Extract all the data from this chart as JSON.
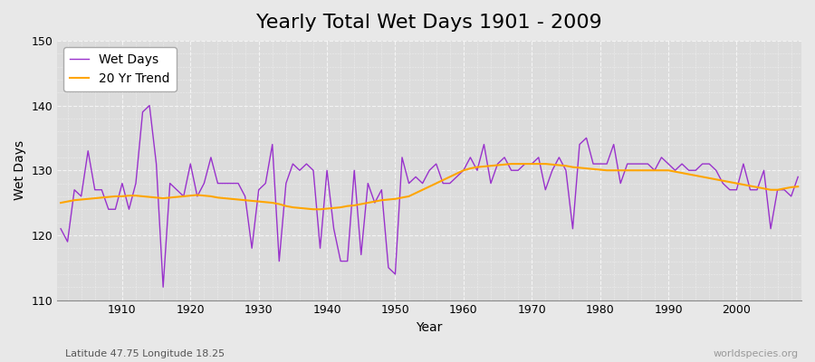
{
  "title": "Yearly Total Wet Days 1901 - 2009",
  "xlabel": "Year",
  "ylabel": "Wet Days",
  "subtitle": "Latitude 47.75 Longitude 18.25",
  "watermark": "worldspecies.org",
  "years": [
    1901,
    1902,
    1903,
    1904,
    1905,
    1906,
    1907,
    1908,
    1909,
    1910,
    1911,
    1912,
    1913,
    1914,
    1915,
    1916,
    1917,
    1918,
    1919,
    1920,
    1921,
    1922,
    1923,
    1924,
    1925,
    1926,
    1927,
    1928,
    1929,
    1930,
    1931,
    1932,
    1933,
    1934,
    1935,
    1936,
    1937,
    1938,
    1939,
    1940,
    1941,
    1942,
    1943,
    1944,
    1945,
    1946,
    1947,
    1948,
    1949,
    1950,
    1951,
    1952,
    1953,
    1954,
    1955,
    1956,
    1957,
    1958,
    1959,
    1960,
    1961,
    1962,
    1963,
    1964,
    1965,
    1966,
    1967,
    1968,
    1969,
    1970,
    1971,
    1972,
    1973,
    1974,
    1975,
    1976,
    1977,
    1978,
    1979,
    1980,
    1981,
    1982,
    1983,
    1984,
    1985,
    1986,
    1987,
    1988,
    1989,
    1990,
    1991,
    1992,
    1993,
    1994,
    1995,
    1996,
    1997,
    1998,
    1999,
    2000,
    2001,
    2002,
    2003,
    2004,
    2005,
    2006,
    2007,
    2008,
    2009
  ],
  "wet_days": [
    121,
    119,
    127,
    126,
    133,
    127,
    127,
    124,
    124,
    128,
    124,
    128,
    139,
    140,
    131,
    112,
    128,
    127,
    126,
    131,
    126,
    128,
    132,
    128,
    128,
    128,
    128,
    126,
    118,
    127,
    128,
    134,
    116,
    128,
    131,
    130,
    131,
    130,
    118,
    130,
    121,
    116,
    116,
    130,
    117,
    128,
    125,
    127,
    115,
    114,
    132,
    128,
    129,
    128,
    130,
    131,
    128,
    128,
    129,
    130,
    132,
    130,
    134,
    128,
    131,
    132,
    130,
    130,
    131,
    131,
    132,
    127,
    130,
    132,
    130,
    121,
    134,
    135,
    131,
    131,
    131,
    134,
    128,
    131,
    131,
    131,
    131,
    130,
    132,
    131,
    130,
    131,
    130,
    130,
    131,
    131,
    130,
    128,
    127,
    127,
    131,
    127,
    127,
    130,
    121,
    127,
    127,
    126,
    129
  ],
  "trend": [
    125.0,
    125.2,
    125.4,
    125.5,
    125.6,
    125.7,
    125.8,
    125.9,
    126.0,
    126.0,
    126.1,
    126.1,
    126.0,
    125.9,
    125.8,
    125.7,
    125.8,
    125.9,
    126.0,
    126.1,
    126.2,
    126.1,
    126.0,
    125.8,
    125.7,
    125.6,
    125.5,
    125.4,
    125.3,
    125.2,
    125.1,
    125.0,
    124.8,
    124.5,
    124.3,
    124.2,
    124.1,
    124.0,
    124.0,
    124.1,
    124.2,
    124.3,
    124.5,
    124.6,
    124.8,
    125.0,
    125.2,
    125.4,
    125.5,
    125.6,
    125.8,
    126.0,
    126.5,
    127.0,
    127.5,
    128.0,
    128.5,
    129.0,
    129.5,
    130.0,
    130.3,
    130.5,
    130.6,
    130.7,
    130.8,
    130.9,
    131.0,
    131.0,
    131.0,
    131.0,
    131.0,
    131.0,
    130.9,
    130.8,
    130.7,
    130.5,
    130.4,
    130.3,
    130.2,
    130.1,
    130.0,
    130.0,
    130.0,
    130.0,
    130.0,
    130.0,
    130.0,
    130.0,
    130.0,
    130.0,
    129.8,
    129.6,
    129.4,
    129.2,
    129.0,
    128.8,
    128.6,
    128.4,
    128.2,
    128.0,
    127.8,
    127.6,
    127.4,
    127.2,
    127.0,
    127.0,
    127.2,
    127.4,
    127.5
  ],
  "wet_days_color": "#9932CC",
  "trend_color": "#FFA500",
  "bg_color": "#E8E8E8",
  "plot_bg_color": "#DCDCDC",
  "grid_color": "#FFFFFF",
  "ylim": [
    110,
    150
  ],
  "yticks": [
    110,
    120,
    130,
    140,
    150
  ],
  "xlim_min": 1901,
  "xlim_max": 2009,
  "title_fontsize": 16,
  "label_fontsize": 10,
  "tick_fontsize": 9
}
